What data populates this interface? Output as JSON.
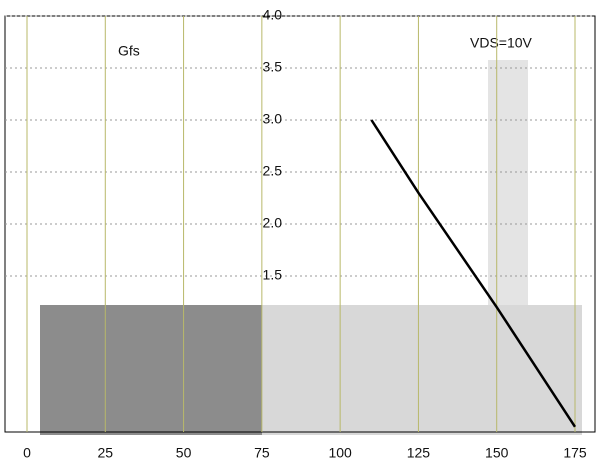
{
  "chart_data": {
    "type": "line",
    "annotation": "VDS=10V",
    "x": [
      110,
      125,
      150,
      175
    ],
    "series": [
      {
        "name": "Gfs",
        "color": "#000000",
        "values": [
          3.0,
          2.3,
          1.2,
          0.05
        ]
      }
    ],
    "xlim": [
      0,
      175
    ],
    "xticks": [
      0,
      25,
      50,
      75,
      100,
      125,
      150,
      175
    ],
    "ylim": [
      0,
      4
    ],
    "yticks": [
      1.5,
      {
        "value": 2,
        "label": "2.0"
      },
      2.5,
      {
        "value": 3,
        "label": "3.0"
      },
      3.5,
      {
        "value": 4,
        "label": "4.0"
      }
    ],
    "grid": true
  }
}
